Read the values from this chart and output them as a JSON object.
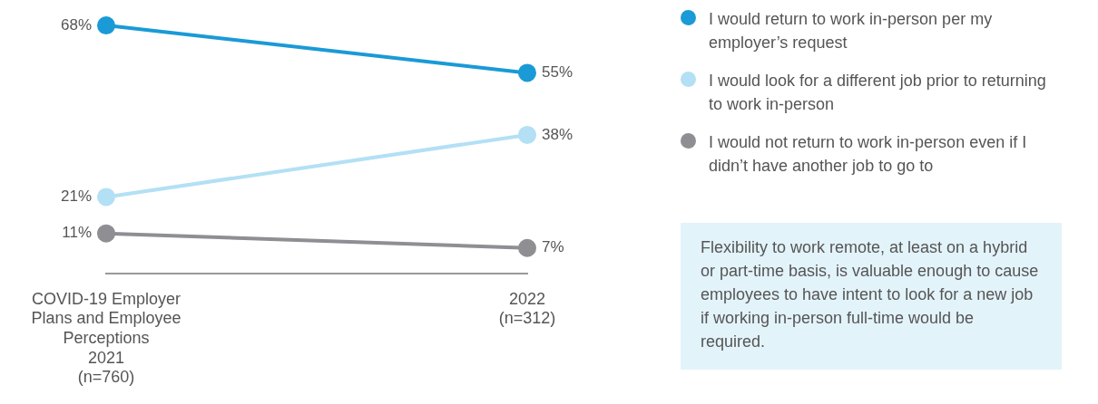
{
  "chart_data": {
    "type": "line",
    "categories": [
      "COVID-19 Employer\nPlans and Employee\nPerceptions\n2021\n(n=760)",
      "2022\n(n=312)"
    ],
    "series": [
      {
        "name": "I would return to work in-person per my employer’s request",
        "color": "#1a9ad6",
        "values": [
          68,
          55
        ],
        "value_labels": [
          "68%",
          "55%"
        ]
      },
      {
        "name": "I would look for a different job prior to returning to work in-person",
        "color": "#b3e0f5",
        "values": [
          21,
          38
        ],
        "value_labels": [
          "21%",
          "38%"
        ]
      },
      {
        "name": "I would not return to work in-person even if I didn’t have another job to go to",
        "color": "#8e8e93",
        "values": [
          11,
          7
        ],
        "value_labels": [
          "11%",
          "7%"
        ]
      }
    ],
    "legend": "right",
    "marker": "circle",
    "grid": false,
    "annotations": [
      "Flexibility to work remote, at least on a hybrid or part-time basis, is valuable enough to cause employees to have intent to look for a new job if working in-person full-time would be required."
    ]
  }
}
